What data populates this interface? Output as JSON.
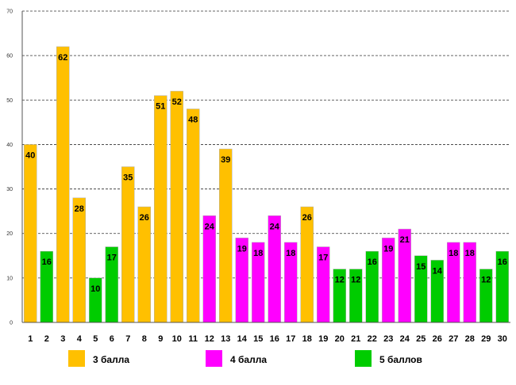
{
  "chart_data": {
    "type": "bar",
    "title": "",
    "xlabel": "",
    "ylabel": "",
    "ylim": [
      0,
      70
    ],
    "y_ticks": [
      0,
      10,
      20,
      30,
      40,
      50,
      60,
      70
    ],
    "grid": "horizontal-dashed",
    "categories": [
      "1",
      "2",
      "3",
      "4",
      "5",
      "6",
      "7",
      "8",
      "9",
      "10",
      "11",
      "12",
      "13",
      "14",
      "15",
      "16",
      "17",
      "18",
      "19",
      "20",
      "21",
      "22",
      "23",
      "24",
      "25",
      "26",
      "27",
      "28",
      "29",
      "30"
    ],
    "values": [
      40,
      16,
      62,
      28,
      10,
      17,
      35,
      26,
      51,
      52,
      48,
      24,
      39,
      19,
      18,
      24,
      18,
      26,
      17,
      12,
      12,
      16,
      19,
      21,
      15,
      14,
      18,
      18,
      12,
      16
    ],
    "groups": [
      "3",
      "5",
      "3",
      "3",
      "5",
      "5",
      "3",
      "3",
      "3",
      "3",
      "3",
      "4",
      "3",
      "4",
      "4",
      "4",
      "4",
      "3",
      "4",
      "5",
      "5",
      "5",
      "4",
      "4",
      "5",
      "5",
      "4",
      "4",
      "5",
      "5"
    ],
    "legend": [
      {
        "key": "3",
        "label": "3 балла",
        "color": "#FFC000"
      },
      {
        "key": "4",
        "label": "4 балла",
        "color": "#FF00FF"
      },
      {
        "key": "5",
        "label": "5 баллов",
        "color": "#00CC00"
      }
    ],
    "legend_position": "bottom"
  }
}
